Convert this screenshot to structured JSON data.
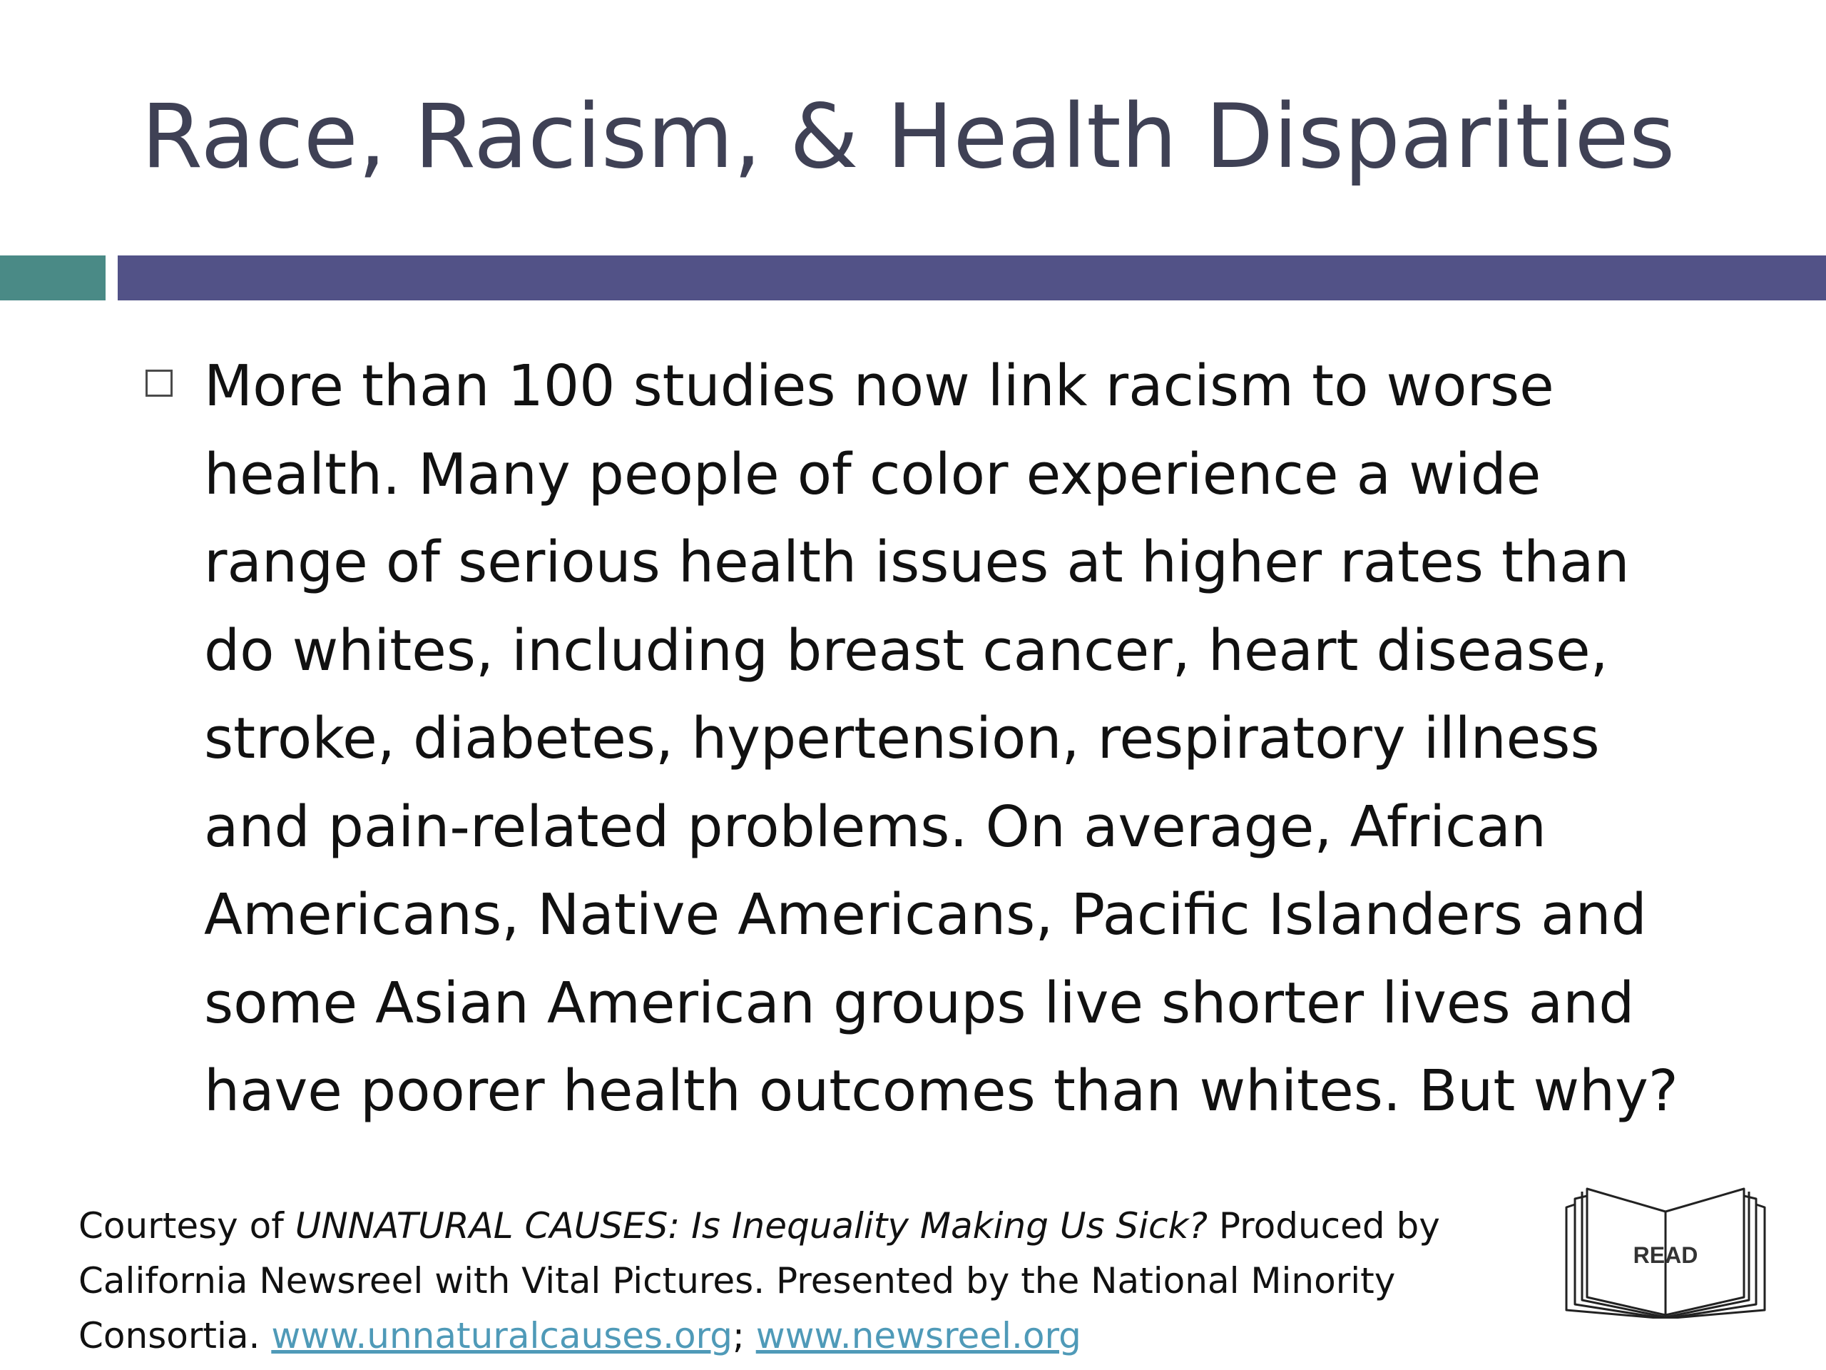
{
  "slide": {
    "title": "Race, Racism, & Health Disparities",
    "body_lines": [
      "More than 100 studies now link racism to worse",
      "health. Many people of color experience a wide",
      "range of serious health issues at higher rates than",
      "do whites, including breast cancer, heart disease,",
      "stroke, diabetes, hypertension, respiratory illness",
      "and pain-related problems. On average, African",
      "Americans, Native Americans, Pacific Islanders and",
      "some Asian American groups live shorter lives and",
      "have poorer health outcomes than whites. But why?"
    ]
  },
  "footer": {
    "line1_prefix": "Courtesy of ",
    "line1_italic": "UNNATURAL CAUSES: Is Inequality Making Us Sick?",
    "line1_suffix": " Produced by",
    "line2": "California Newsreel with Vital Pictures. Presented by the National Minority",
    "line3_prefix": "Consortia. ",
    "link1": "www.unnaturalcauses.org",
    "separator": "; ",
    "link2": "www.newsreel.org"
  },
  "read_icon": {
    "icon": "open-book-icon",
    "label": "READ"
  },
  "colors": {
    "title": "#3f4155",
    "accent_teal": "#4a8a86",
    "accent_purple": "#525287",
    "link": "#4f9ab8"
  }
}
